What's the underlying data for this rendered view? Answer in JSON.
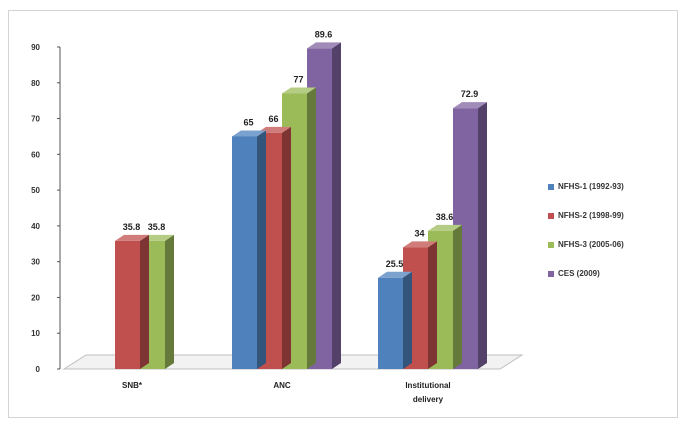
{
  "chart_data": {
    "type": "bar",
    "title": "",
    "xlabel": "",
    "ylabel": "",
    "ylim": [
      0,
      90
    ],
    "yticks": [
      "0",
      "10",
      "20",
      "30",
      "40",
      "50",
      "60",
      "70",
      "80",
      "90"
    ],
    "categories": [
      "SNB*",
      "ANC",
      "Institutional delivery"
    ],
    "category_lines": [
      [
        "SNB*"
      ],
      [
        "ANC"
      ],
      [
        "Institutional",
        "delivery"
      ]
    ],
    "series": [
      {
        "name": "NFHS-1 (1992-93)",
        "color": "#4f81bd",
        "values": [
          null,
          65,
          25.5
        ],
        "labels": [
          "",
          "65",
          "25.5"
        ]
      },
      {
        "name": "NFHS-2 (1998-99)",
        "color": "#c0504d",
        "values": [
          35.8,
          66,
          34
        ],
        "labels": [
          "35.8",
          "66",
          "34"
        ]
      },
      {
        "name": "NFHS-3 (2005-06)",
        "color": "#9bbb59",
        "values": [
          35.8,
          77,
          38.6
        ],
        "labels": [
          "35.8",
          "77",
          "38.6"
        ]
      },
      {
        "name": "CES (2009)",
        "color": "#8064a2",
        "values": [
          null,
          89.6,
          72.9
        ],
        "labels": [
          "",
          "89.6",
          "72.9"
        ]
      }
    ],
    "grid": false,
    "legend_position": "right"
  }
}
